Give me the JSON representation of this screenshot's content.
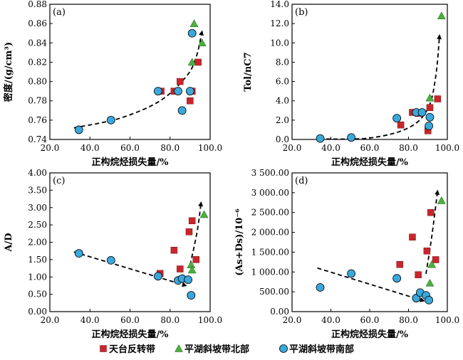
{
  "legend": [
    {
      "name": "天台反转带",
      "marker": "square",
      "color": "#c8262c"
    },
    {
      "name": "平湖斜坡带北部",
      "marker": "triangle",
      "color": "#4caf3f"
    },
    {
      "name": "平湖斜坡带南部",
      "marker": "circle",
      "color": "#3ba8dc"
    }
  ],
  "chart_data": [
    {
      "type": "scatter",
      "panel": "(a)",
      "xlabel": "正构烷烃损失量/%",
      "ylabel": "密度/(g/cm³)",
      "xlim": [
        20,
        100
      ],
      "ylim": [
        0.74,
        0.88
      ],
      "xticks": [
        "20.0",
        "40.0",
        "60.0",
        "80.0",
        "100.0"
      ],
      "yticks": [
        "0.74",
        "0.76",
        "0.78",
        "0.80",
        "0.82",
        "0.84",
        "0.86",
        "0.88"
      ],
      "series": [
        {
          "name": "天台反转带",
          "points": [
            [
              75.5,
              0.79
            ],
            [
              82,
              0.79
            ],
            [
              85,
              0.8
            ],
            [
              90,
              0.78
            ],
            [
              91,
              0.79
            ],
            [
              94,
              0.82
            ]
          ]
        },
        {
          "name": "平湖斜坡带北部",
          "points": [
            [
              91,
              0.82
            ],
            [
              92,
              0.86
            ],
            [
              96,
              0.84
            ]
          ]
        },
        {
          "name": "平湖斜坡带南部",
          "points": [
            [
              34.5,
              0.75
            ],
            [
              50.5,
              0.76
            ],
            [
              74,
              0.79
            ],
            [
              84,
              0.79
            ],
            [
              86,
              0.77
            ],
            [
              90,
              0.79
            ],
            [
              91,
              0.85
            ]
          ]
        }
      ],
      "trend_arrows": [
        {
          "points": [
            [
              32,
              0.752
            ],
            [
              55,
              0.762
            ],
            [
              75,
              0.78
            ],
            [
              88,
              0.805
            ],
            [
              93,
              0.825
            ],
            [
              96,
              0.852
            ]
          ]
        }
      ]
    },
    {
      "type": "scatter",
      "panel": "(b)",
      "xlabel": "正构烷烃损失量/%",
      "ylabel": "Tol/nC7",
      "xlim": [
        20,
        100
      ],
      "ylim": [
        0,
        14
      ],
      "xticks": [
        "20.0",
        "40.0",
        "60.0",
        "80.0",
        "100.0"
      ],
      "yticks": [
        "0.0",
        "2.0",
        "4.0",
        "6.0",
        "8.0",
        "10.0",
        "12.0",
        "14.0"
      ],
      "series": [
        {
          "name": "天台反转带",
          "points": [
            [
              76,
              1.5
            ],
            [
              82,
              2.8
            ],
            [
              85,
              2.7
            ],
            [
              90,
              0.9
            ],
            [
              91,
              3.3
            ],
            [
              95,
              4.2
            ]
          ]
        },
        {
          "name": "平湖斜坡带北部",
          "points": [
            [
              91,
              4.3
            ],
            [
              97,
              12.8
            ]
          ]
        },
        {
          "name": "平湖斜坡带南部",
          "points": [
            [
              34.5,
              0.1
            ],
            [
              50.5,
              0.2
            ],
            [
              74,
              2.2
            ],
            [
              84,
              2.8
            ],
            [
              87,
              2.8
            ],
            [
              90.5,
              1.4
            ],
            [
              91,
              2.3
            ]
          ]
        }
      ],
      "trend_arrows": [
        {
          "points": [
            [
              34,
              0.05
            ],
            [
              60,
              0.15
            ],
            [
              80,
              1.2
            ],
            [
              90,
              3.2
            ],
            [
              94,
              6.5
            ],
            [
              96,
              10.8
            ]
          ]
        }
      ]
    },
    {
      "type": "scatter",
      "panel": "(c)",
      "xlabel": "正构烷烃损失量/%",
      "ylabel": "A/D",
      "xlim": [
        20,
        100
      ],
      "ylim": [
        0,
        4
      ],
      "xticks": [
        "20.0",
        "40.0",
        "60.0",
        "80.0",
        "100.0"
      ],
      "yticks": [
        "0.00",
        "0.50",
        "1.00",
        "1.50",
        "2.00",
        "2.50",
        "3.00",
        "3.50",
        "4.00"
      ],
      "series": [
        {
          "name": "天台反转带",
          "points": [
            [
              75,
              1.1
            ],
            [
              82,
              1.77
            ],
            [
              85,
              1.23
            ],
            [
              89.5,
              2.3
            ],
            [
              91,
              2.62
            ],
            [
              93,
              1.5
            ]
          ]
        },
        {
          "name": "平湖斜坡带北部",
          "points": [
            [
              90.5,
              1.35
            ],
            [
              91,
              1.2
            ],
            [
              97,
              2.8
            ]
          ]
        },
        {
          "name": "平湖斜坡带南部",
          "points": [
            [
              34.5,
              1.68
            ],
            [
              50.5,
              1.48
            ],
            [
              74,
              1.02
            ],
            [
              84,
              0.9
            ],
            [
              86,
              0.95
            ],
            [
              89,
              0.92
            ],
            [
              90.5,
              0.47
            ]
          ]
        }
      ],
      "trend_arrows": [
        {
          "points": [
            [
              32,
              1.72
            ],
            [
              88,
              0.75
            ]
          ]
        },
        {
          "points": [
            [
              90,
              1.35
            ],
            [
              93.5,
              2.3
            ],
            [
              95.5,
              3.15
            ]
          ]
        }
      ]
    },
    {
      "type": "scatter",
      "panel": "(d)",
      "xlabel": "正构烷烃损失量/%",
      "ylabel": "(As+Ds)/10⁻⁶",
      "xlim": [
        20,
        100
      ],
      "ylim": [
        0,
        3500
      ],
      "xticks": [
        "20.0",
        "40.0",
        "60.0",
        "80.0",
        "100.0"
      ],
      "yticks": [
        "0.00",
        "500.00",
        "1 000.00",
        "1 500.00",
        "2 000.00",
        "2 500.00",
        "3 000.00",
        "3 500.00"
      ],
      "series": [
        {
          "name": "天台反转带",
          "points": [
            [
              75.5,
              1190
            ],
            [
              82,
              1880
            ],
            [
              85,
              930
            ],
            [
              89.5,
              1530
            ],
            [
              91.5,
              2500
            ],
            [
              94,
              1310
            ]
          ]
        },
        {
          "name": "平湖斜坡带北部",
          "points": [
            [
              91,
              720
            ],
            [
              92,
              1190
            ],
            [
              97,
              2800
            ]
          ]
        },
        {
          "name": "平湖斜坡带南部",
          "points": [
            [
              34.5,
              610
            ],
            [
              50.5,
              960
            ],
            [
              74,
              840
            ],
            [
              84,
              340
            ],
            [
              86,
              480
            ],
            [
              89,
              410
            ],
            [
              90.5,
              290
            ]
          ]
        }
      ],
      "trend_arrows": [
        {
          "points": [
            [
              33,
              1100
            ],
            [
              88,
              270
            ]
          ]
        },
        {
          "points": [
            [
              89,
              950
            ],
            [
              92,
              1900
            ],
            [
              95,
              3050
            ]
          ]
        }
      ]
    }
  ]
}
